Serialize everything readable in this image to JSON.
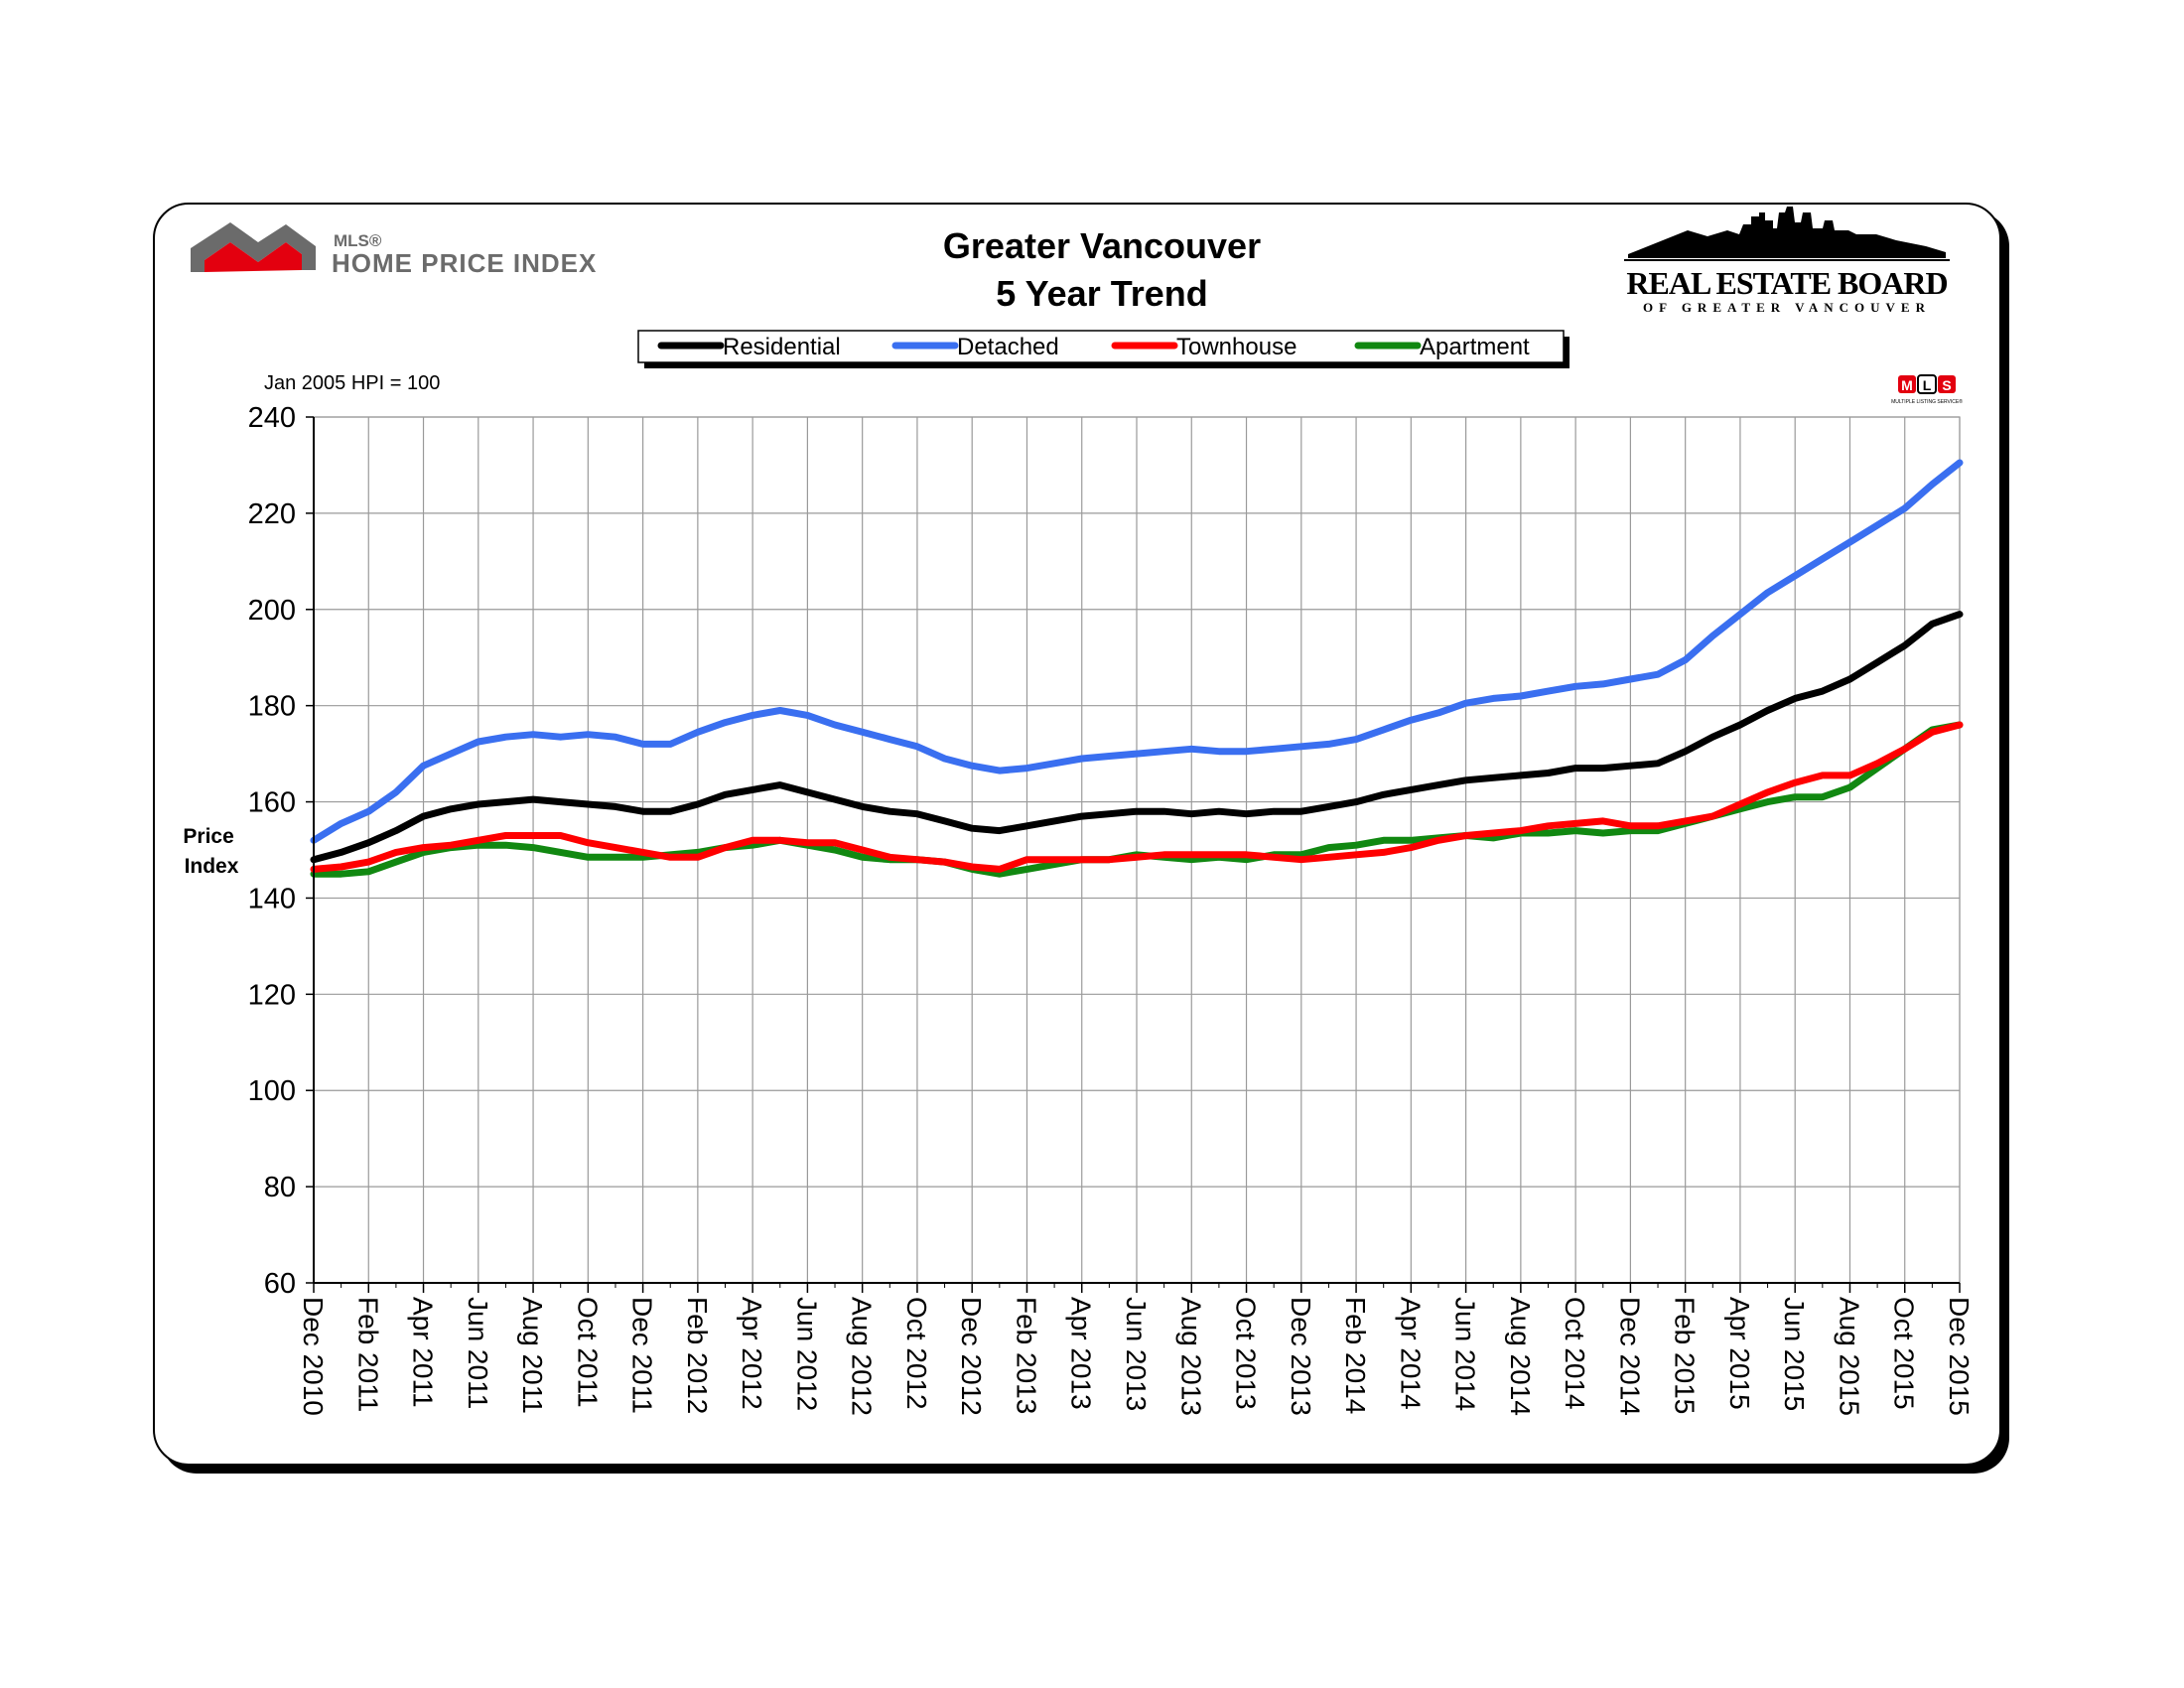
{
  "header": {
    "hpi_logo_small": "MLS®",
    "hpi_logo_main": "HOME PRICE INDEX",
    "board_logo_main": "REAL ESTATE BOARD",
    "board_logo_sub": "OF GREATER VANCOUVER",
    "mls_badge_text": "MULTIPLE LISTING SERVICE®",
    "mls_letters": [
      "M",
      "L",
      "S"
    ]
  },
  "colors": {
    "residential": "#000000",
    "detached": "#3a6ff0",
    "townhouse": "#ff0000",
    "apartment": "#118811",
    "gridline": "#9a9a9a",
    "logo_gray": "#6b6b6b",
    "logo_red": "#e3000f"
  },
  "chart_data": {
    "type": "line",
    "title": "Greater Vancouver",
    "subtitle": "5 Year Trend",
    "note": "Jan 2005 HPI = 100",
    "ylabel": "Price Index",
    "xlabel": "",
    "ylim": [
      60,
      240
    ],
    "yticks": [
      60,
      80,
      100,
      120,
      140,
      160,
      180,
      200,
      220,
      240
    ],
    "grid": true,
    "legend_position": "top-center",
    "x": [
      "Dec 2010",
      "Jan 2011",
      "Feb 2011",
      "Mar 2011",
      "Apr 2011",
      "May 2011",
      "Jun 2011",
      "Jul 2011",
      "Aug 2011",
      "Sep 2011",
      "Oct 2011",
      "Nov 2011",
      "Dec 2011",
      "Jan 2012",
      "Feb 2012",
      "Mar 2012",
      "Apr 2012",
      "May 2012",
      "Jun 2012",
      "Jul 2012",
      "Aug 2012",
      "Sep 2012",
      "Oct 2012",
      "Nov 2012",
      "Dec 2012",
      "Jan 2013",
      "Feb 2013",
      "Mar 2013",
      "Apr 2013",
      "May 2013",
      "Jun 2013",
      "Jul 2013",
      "Aug 2013",
      "Sep 2013",
      "Oct 2013",
      "Nov 2013",
      "Dec 2013",
      "Jan 2014",
      "Feb 2014",
      "Mar 2014",
      "Apr 2014",
      "May 2014",
      "Jun 2014",
      "Jul 2014",
      "Aug 2014",
      "Sep 2014",
      "Oct 2014",
      "Nov 2014",
      "Dec 2014",
      "Jan 2015",
      "Feb 2015",
      "Mar 2015",
      "Apr 2015",
      "May 2015",
      "Jun 2015",
      "Jul 2015",
      "Aug 2015",
      "Sep 2015",
      "Oct 2015",
      "Nov 2015",
      "Dec 2015"
    ],
    "tick_labels": [
      "Dec 2010",
      "Feb 2011",
      "Apr 2011",
      "Jun 2011",
      "Aug 2011",
      "Oct 2011",
      "Dec 2011",
      "Feb 2012",
      "Apr 2012",
      "Jun 2012",
      "Aug 2012",
      "Oct 2012",
      "Dec 2012",
      "Feb 2013",
      "Apr 2013",
      "Jun 2013",
      "Aug 2013",
      "Oct 2013",
      "Dec 2013",
      "Feb 2014",
      "Apr 2014",
      "Jun 2014",
      "Aug 2014",
      "Oct 2014",
      "Dec 2014",
      "Feb 2015",
      "Apr 2015",
      "Jun 2015",
      "Aug 2015",
      "Oct 2015",
      "Dec 2015"
    ],
    "series": [
      {
        "name": "Residential",
        "color": "#000000",
        "values": [
          148,
          149.5,
          151.5,
          154,
          157,
          158.5,
          159.5,
          160,
          160.5,
          160,
          159.5,
          159,
          158,
          158,
          159.5,
          161.5,
          162.5,
          163.5,
          162,
          160.5,
          159,
          158,
          157.5,
          156,
          154.5,
          154,
          155,
          156,
          157,
          157.5,
          158,
          158,
          157.5,
          158,
          157.5,
          158,
          158,
          159,
          160,
          161.5,
          162.5,
          163.5,
          164.5,
          165,
          165.5,
          166,
          167,
          167,
          167.5,
          168,
          170.5,
          173.5,
          176,
          179,
          181.5,
          183,
          185.5,
          189,
          192.5,
          197,
          199
        ]
      },
      {
        "name": "Detached",
        "color": "#3a6ff0",
        "values": [
          152,
          155.5,
          158,
          162,
          167.5,
          170,
          172.5,
          173.5,
          174,
          173.5,
          174,
          173.5,
          172,
          172,
          174.5,
          176.5,
          178,
          179,
          178,
          176,
          174.5,
          173,
          171.5,
          169,
          167.5,
          166.5,
          167,
          168,
          169,
          169.5,
          170,
          170.5,
          171,
          170.5,
          170.5,
          171,
          171.5,
          172,
          173,
          175,
          177,
          178.5,
          180.5,
          181.5,
          182,
          183,
          184,
          184.5,
          185.5,
          186.5,
          189.5,
          194.5,
          199,
          203.5,
          207,
          210.5,
          214,
          217.5,
          221,
          226,
          230.5
        ]
      },
      {
        "name": "Townhouse",
        "color": "#ff0000",
        "values": [
          146,
          146.5,
          147.5,
          149.5,
          150.5,
          151,
          152,
          153,
          153,
          153,
          151.5,
          150.5,
          149.5,
          148.5,
          148.5,
          150.5,
          152,
          152,
          151.5,
          151.5,
          150,
          148.5,
          148,
          147.5,
          146.5,
          146,
          148,
          148,
          148,
          148,
          148.5,
          149,
          149,
          149,
          149,
          148.5,
          148,
          148.5,
          149,
          149.5,
          150.5,
          152,
          153,
          153.5,
          154,
          155,
          155.5,
          156,
          155,
          155,
          156,
          157,
          159.5,
          162,
          164,
          165.5,
          165.5,
          168,
          171,
          174.5,
          176
        ]
      },
      {
        "name": "Apartment",
        "color": "#118811",
        "values": [
          145,
          145,
          145.5,
          147.5,
          149.5,
          150.5,
          151,
          151,
          150.5,
          149.5,
          148.5,
          148.5,
          148.5,
          149,
          149.5,
          150.5,
          151,
          152,
          151,
          150,
          148.5,
          148,
          148,
          147.5,
          146,
          145,
          146,
          147,
          148,
          148,
          149,
          148.5,
          148,
          148.5,
          148,
          149,
          149,
          150.5,
          151,
          152,
          152,
          152.5,
          153,
          152.5,
          153.5,
          153.5,
          154,
          153.5,
          154,
          154,
          155.5,
          157,
          158.5,
          160,
          161,
          161,
          163,
          167,
          171,
          175,
          176
        ]
      }
    ]
  }
}
